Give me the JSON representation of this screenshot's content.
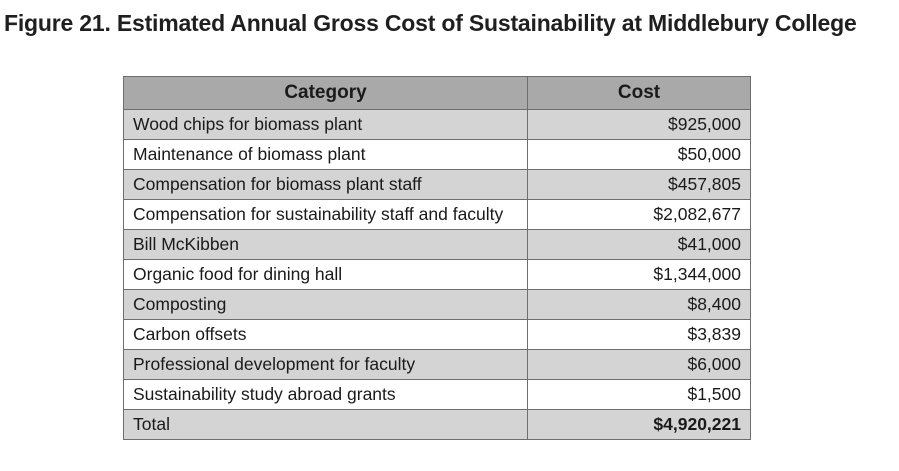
{
  "figure_title": "Figure 21. Estimated Annual Gross Cost of Sustainability at Middlebury College",
  "table": {
    "headers": {
      "category": "Category",
      "cost": "Cost"
    },
    "rows": [
      {
        "category": "Wood chips for biomass plant",
        "cost": "$925,000"
      },
      {
        "category": "Maintenance of biomass plant",
        "cost": "$50,000"
      },
      {
        "category": "Compensation for biomass plant staff",
        "cost": "$457,805"
      },
      {
        "category": "Compensation for sustainability staff and faculty",
        "cost": "$2,082,677"
      },
      {
        "category": "Bill McKibben",
        "cost": "$41,000"
      },
      {
        "category": "Organic food for dining hall",
        "cost": "$1,344,000"
      },
      {
        "category": "Composting",
        "cost": "$8,400"
      },
      {
        "category": "Carbon offsets",
        "cost": "$3,839"
      },
      {
        "category": "Professional development for faculty",
        "cost": "$6,000"
      },
      {
        "category": "Sustainability study abroad grants",
        "cost": "$1,500"
      }
    ],
    "total": {
      "category": "Total",
      "cost": "$4,920,221"
    }
  },
  "colors": {
    "header_fill": "#a9a9a9",
    "shaded_row_fill": "#d4d4d4",
    "plain_row_fill": "#ffffff",
    "border": "#6e6e6e"
  }
}
